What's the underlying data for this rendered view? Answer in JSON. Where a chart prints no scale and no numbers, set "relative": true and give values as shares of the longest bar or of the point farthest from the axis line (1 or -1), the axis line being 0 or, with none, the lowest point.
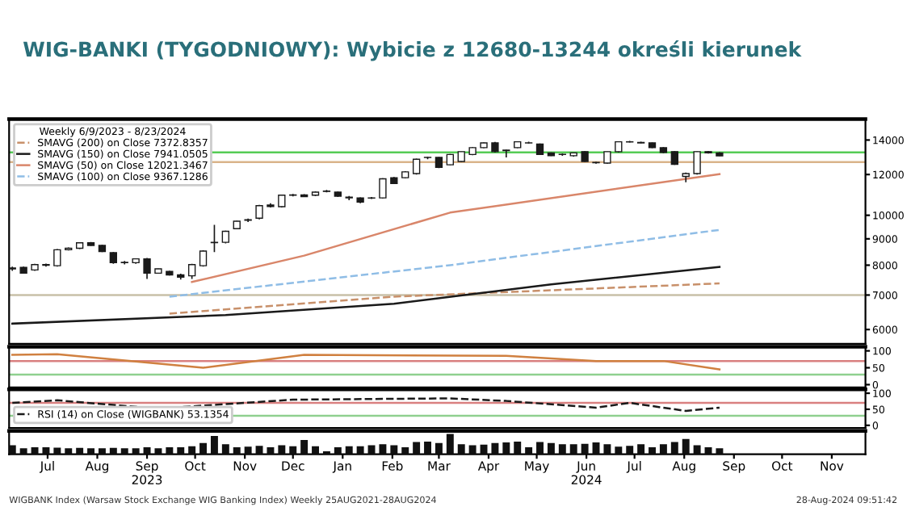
{
  "chart_data": [
    {
      "type": "candlestick",
      "title": "WIG-BANKI (TYGODNIOWY): Wybicie z 12680-13244 określi kierunek",
      "legend_title": "Weekly 6/9/2023 - 8/23/2024",
      "x": [
        "2023-06-09",
        "2023-06-16",
        "2023-06-23",
        "2023-06-30",
        "2023-07-07",
        "2023-07-14",
        "2023-07-21",
        "2023-07-28",
        "2023-08-04",
        "2023-08-11",
        "2023-08-18",
        "2023-08-25",
        "2023-09-01",
        "2023-09-08",
        "2023-09-15",
        "2023-09-22",
        "2023-09-29",
        "2023-10-06",
        "2023-10-13",
        "2023-10-20",
        "2023-10-27",
        "2023-11-03",
        "2023-11-10",
        "2023-11-17",
        "2023-11-24",
        "2023-12-01",
        "2023-12-08",
        "2023-12-15",
        "2023-12-22",
        "2023-12-29",
        "2024-01-05",
        "2024-01-12",
        "2024-01-19",
        "2024-01-26",
        "2024-02-02",
        "2024-02-09",
        "2024-02-16",
        "2024-02-23",
        "2024-03-01",
        "2024-03-08",
        "2024-03-15",
        "2024-03-22",
        "2024-03-29",
        "2024-04-05",
        "2024-04-12",
        "2024-04-19",
        "2024-04-26",
        "2024-05-03",
        "2024-05-10",
        "2024-05-17",
        "2024-05-24",
        "2024-05-31",
        "2024-06-07",
        "2024-06-14",
        "2024-06-21",
        "2024-06-28",
        "2024-07-05",
        "2024-07-12",
        "2024-07-19",
        "2024-07-26",
        "2024-08-02",
        "2024-08-09",
        "2024-08-16",
        "2024-08-23"
      ],
      "ohlc": [
        [
          7900,
          7950,
          7800,
          7870
        ],
        [
          7920,
          7950,
          7700,
          7720
        ],
        [
          7830,
          8050,
          7800,
          8020
        ],
        [
          8020,
          8060,
          7950,
          8000
        ],
        [
          7980,
          8600,
          7950,
          8570
        ],
        [
          8570,
          8660,
          8540,
          8630
        ],
        [
          8630,
          8860,
          8600,
          8840
        ],
        [
          8840,
          8870,
          8720,
          8740
        ],
        [
          8740,
          8760,
          8480,
          8500
        ],
        [
          8460,
          8480,
          8050,
          8090
        ],
        [
          8090,
          8150,
          8030,
          8100
        ],
        [
          8090,
          8250,
          8050,
          8230
        ],
        [
          8230,
          8260,
          7520,
          7720
        ],
        [
          7720,
          7880,
          7700,
          7870
        ],
        [
          7780,
          7800,
          7640,
          7660
        ],
        [
          7660,
          7700,
          7500,
          7580
        ],
        [
          7630,
          8050,
          7520,
          8020
        ],
        [
          7980,
          8550,
          7950,
          8520
        ],
        [
          8850,
          9580,
          8480,
          8860
        ],
        [
          8860,
          9330,
          8820,
          9310
        ],
        [
          9420,
          9760,
          9400,
          9740
        ],
        [
          9780,
          9850,
          9700,
          9800
        ],
        [
          9870,
          10480,
          9820,
          10440
        ],
        [
          10470,
          10550,
          10350,
          10400
        ],
        [
          10390,
          10970,
          10350,
          10940
        ],
        [
          10940,
          11000,
          10880,
          10950
        ],
        [
          10950,
          10990,
          10850,
          10870
        ],
        [
          10940,
          11130,
          10900,
          11090
        ],
        [
          11140,
          11200,
          11080,
          11130
        ],
        [
          11090,
          11120,
          10850,
          10890
        ],
        [
          10840,
          10900,
          10700,
          10810
        ],
        [
          10810,
          10830,
          10550,
          10610
        ],
        [
          10800,
          10850,
          10750,
          10810
        ],
        [
          10810,
          11800,
          10780,
          11770
        ],
        [
          11830,
          11870,
          11500,
          11530
        ],
        [
          11830,
          12180,
          11800,
          12140
        ],
        [
          12050,
          12880,
          12000,
          12850
        ],
        [
          12950,
          13000,
          12850,
          12960
        ],
        [
          12950,
          12980,
          12350,
          12390
        ],
        [
          12530,
          13150,
          12500,
          13120
        ],
        [
          12720,
          13300,
          12700,
          13290
        ],
        [
          13120,
          13560,
          13080,
          13530
        ],
        [
          13530,
          13850,
          13500,
          13820
        ],
        [
          13820,
          13880,
          13250,
          13290
        ],
        [
          13350,
          13400,
          12950,
          13380
        ],
        [
          13530,
          13920,
          13500,
          13890
        ],
        [
          13820,
          13900,
          13780,
          13830
        ],
        [
          13750,
          13780,
          13100,
          13120
        ],
        [
          13220,
          13250,
          13030,
          13050
        ],
        [
          13120,
          13180,
          13050,
          13130
        ],
        [
          13050,
          13240,
          13000,
          13220
        ],
        [
          13290,
          13320,
          12700,
          12720
        ],
        [
          12650,
          12700,
          12600,
          12660
        ],
        [
          12630,
          13300,
          12600,
          13290
        ],
        [
          13290,
          13900,
          13250,
          13890
        ],
        [
          13890,
          13950,
          13850,
          13880
        ],
        [
          13850,
          13900,
          13800,
          13820
        ],
        [
          13820,
          13850,
          13500,
          13530
        ],
        [
          13530,
          13560,
          13200,
          13240
        ],
        [
          13290,
          13320,
          12530,
          12560
        ],
        [
          11900,
          12100,
          11590,
          12050
        ],
        [
          12050,
          13310,
          12000,
          13290
        ],
        [
          13290,
          13330,
          13180,
          13220
        ],
        [
          13220,
          13260,
          13030,
          13042
        ]
      ],
      "series": [
        {
          "type": "line",
          "name": "SMAVG (200) on Close 7372.8357",
          "color": "#c8906a",
          "line_style": "dashed",
          "x": [
            "2023-09-15",
            "2024-02-02",
            "2024-08-23"
          ],
          "values": [
            6440,
            6950,
            7373
          ]
        },
        {
          "type": "line",
          "name": "SMAVG (150) on Close 7941.0505",
          "color": "#1a1a1a",
          "line_style": "solid",
          "x": [
            "2023-06-09",
            "2023-10-20",
            "2024-02-02",
            "2024-05-10",
            "2024-08-23"
          ],
          "values": [
            6160,
            6400,
            6730,
            7340,
            7941
          ]
        },
        {
          "type": "line",
          "name": "SMAVG (50) on Close 12021.3467",
          "color": "#d9866a",
          "line_style": "solid",
          "x": [
            "2023-09-29",
            "2023-12-08",
            "2024-03-08",
            "2024-08-23"
          ],
          "values": [
            7420,
            8350,
            10120,
            12021
          ]
        },
        {
          "type": "line",
          "name": "SMAVG (100) on Close 9367.1286",
          "color": "#8fbde6",
          "line_style": "dashed",
          "x": [
            "2023-09-15",
            "2024-03-08",
            "2024-08-23"
          ],
          "values": [
            6950,
            8000,
            9367
          ]
        }
      ],
      "color": "#1a1a1a",
      "log": true,
      "ylim": [
        5630,
        15370
      ],
      "yticks": [
        6000,
        7000,
        8000,
        9000,
        10000,
        12000,
        14000
      ],
      "xlim": [
        "2023-06-07",
        "2024-11-22"
      ],
      "tick_labels": "y",
      "legend": "top left",
      "grid": false,
      "ref_lines": [
        {
          "axis": "y",
          "value": 13244,
          "color": "#55cc55"
        },
        {
          "axis": "y",
          "value": 12680,
          "color": "#d9b48a"
        },
        {
          "axis": "y",
          "value": 7000,
          "color": "#c8c0a8"
        }
      ]
    },
    {
      "type": "line",
      "series": [
        {
          "color": "#d08040",
          "x": [
            "2023-06-09",
            "2023-07-07",
            "2023-10-06",
            "2023-12-08",
            "2024-04-12",
            "2024-06-07",
            "2024-07-19",
            "2024-08-23"
          ],
          "values": [
            88,
            90,
            50,
            88,
            85,
            70,
            70,
            45
          ]
        }
      ],
      "ylim": [
        -8,
        112
      ],
      "yticks": [
        0,
        50,
        100
      ],
      "xlim": [
        "2023-06-07",
        "2024-11-22"
      ],
      "tick_labels": "y",
      "grid": false,
      "ref_lines": [
        {
          "axis": "y",
          "value": 70,
          "color": "#d98080"
        },
        {
          "axis": "y",
          "value": 30,
          "color": "#8fd08f"
        }
      ]
    },
    {
      "type": "line",
      "series": [
        {
          "name": "RSI (14) on Close (WIGBANK) 53.1354",
          "color": "#1a1a1a",
          "line_style": "dashed",
          "x": [
            "2023-06-09",
            "2023-07-07",
            "2023-09-08",
            "2023-12-01",
            "2024-03-08",
            "2024-04-12",
            "2024-06-07",
            "2024-06-28",
            "2024-08-02",
            "2024-08-23"
          ],
          "values": [
            70,
            78,
            52,
            80,
            84,
            76,
            55,
            70,
            45,
            55
          ]
        }
      ],
      "ylim": [
        -8,
        112
      ],
      "yticks": [
        0,
        50,
        100
      ],
      "xlim": [
        "2023-06-07",
        "2024-11-22"
      ],
      "tick_labels": "y",
      "legend": "bottom left",
      "grid": false,
      "ref_lines": [
        {
          "axis": "y",
          "value": 70,
          "color": "#d98080"
        },
        {
          "axis": "y",
          "value": 30,
          "color": "#8fd08f"
        }
      ]
    },
    {
      "type": "bar",
      "relative": true,
      "color": "#111111",
      "x": [
        "2023-06-09",
        "2023-06-16",
        "2023-06-23",
        "2023-06-30",
        "2023-07-07",
        "2023-07-14",
        "2023-07-21",
        "2023-07-28",
        "2023-08-04",
        "2023-08-11",
        "2023-08-18",
        "2023-08-25",
        "2023-09-01",
        "2023-09-08",
        "2023-09-15",
        "2023-09-22",
        "2023-09-29",
        "2023-10-06",
        "2023-10-13",
        "2023-10-20",
        "2023-10-27",
        "2023-11-03",
        "2023-11-10",
        "2023-11-17",
        "2023-11-24",
        "2023-12-01",
        "2023-12-08",
        "2023-12-15",
        "2023-12-22",
        "2023-12-29",
        "2024-01-05",
        "2024-01-12",
        "2024-01-19",
        "2024-01-26",
        "2024-02-02",
        "2024-02-09",
        "2024-02-16",
        "2024-02-23",
        "2024-03-01",
        "2024-03-08",
        "2024-03-15",
        "2024-03-22",
        "2024-03-29",
        "2024-04-05",
        "2024-04-12",
        "2024-04-19",
        "2024-04-26",
        "2024-05-03",
        "2024-05-10",
        "2024-05-17",
        "2024-05-24",
        "2024-05-31",
        "2024-06-07",
        "2024-06-14",
        "2024-06-21",
        "2024-06-28",
        "2024-07-05",
        "2024-07-12",
        "2024-07-19",
        "2024-07-26",
        "2024-08-02",
        "2024-08-09",
        "2024-08-16",
        "2024-08-23"
      ],
      "values": [
        0.45,
        0.3,
        0.35,
        0.35,
        0.33,
        0.3,
        0.32,
        0.3,
        0.3,
        0.32,
        0.3,
        0.3,
        0.35,
        0.3,
        0.35,
        0.35,
        0.4,
        0.55,
        0.9,
        0.5,
        0.35,
        0.38,
        0.42,
        0.35,
        0.45,
        0.4,
        0.7,
        0.4,
        0.15,
        0.35,
        0.4,
        0.4,
        0.45,
        0.5,
        0.45,
        0.35,
        0.6,
        0.62,
        0.55,
        1.0,
        0.5,
        0.45,
        0.48,
        0.55,
        0.58,
        0.62,
        0.35,
        0.6,
        0.55,
        0.5,
        0.5,
        0.52,
        0.58,
        0.5,
        0.38,
        0.42,
        0.5,
        0.35,
        0.5,
        0.6,
        0.75,
        0.45,
        0.35,
        0.3
      ],
      "xlim": [
        "2023-06-07",
        "2024-11-22"
      ],
      "tick_labels": "x",
      "grid": false,
      "xticks": [
        {
          "value": "2023-07-01",
          "label": "Jul"
        },
        {
          "value": "2023-08-01",
          "label": "Aug"
        },
        {
          "value": "2023-09-01",
          "label": "Sep\n2023"
        },
        {
          "value": "2023-10-01",
          "label": "Oct"
        },
        {
          "value": "2023-11-01",
          "label": "Nov"
        },
        {
          "value": "2023-12-01",
          "label": "Dec"
        },
        {
          "value": "2024-01-01",
          "label": "Jan"
        },
        {
          "value": "2024-02-01",
          "label": "Feb"
        },
        {
          "value": "2024-03-01",
          "label": "Mar"
        },
        {
          "value": "2024-04-01",
          "label": "Apr"
        },
        {
          "value": "2024-05-01",
          "label": "May"
        },
        {
          "value": "2024-06-01",
          "label": "Jun\n2024"
        },
        {
          "value": "2024-07-01",
          "label": "Jul"
        },
        {
          "value": "2024-08-01",
          "label": "Aug"
        },
        {
          "value": "2024-09-01",
          "label": "Sep"
        },
        {
          "value": "2024-10-01",
          "label": "Oct"
        },
        {
          "value": "2024-11-01",
          "label": "Nov"
        }
      ],
      "annotations": [
        "WIGBANK Index (Warsaw Stock Exchange WIG Banking Index) Weekly 25AUG2021-28AUG2024",
        "28-Aug-2024 09:51:42"
      ]
    }
  ]
}
